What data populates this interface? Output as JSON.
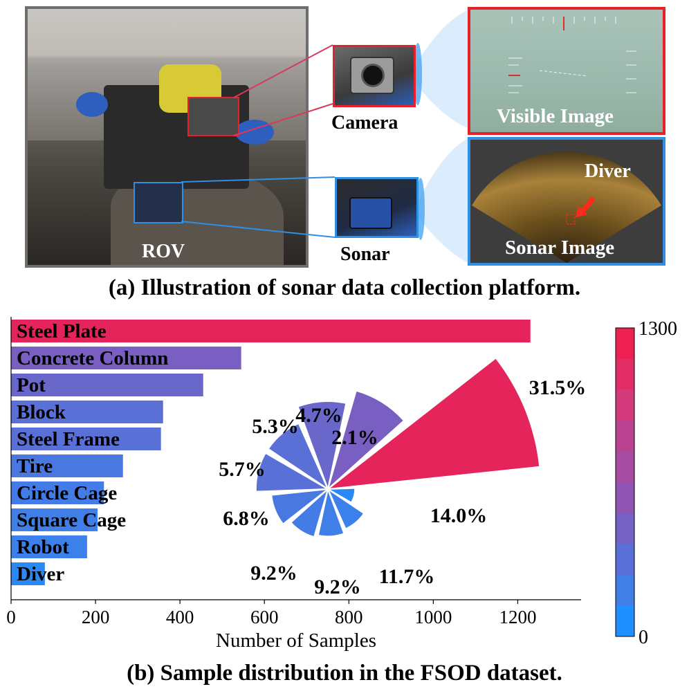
{
  "panel_a": {
    "caption": "(a) Illustration of  sonar data collection platform.",
    "rov_label": "ROV",
    "camera_label": "Camera",
    "sonar_label": "Sonar",
    "visible_image_label": "Visible Image",
    "sonar_image_label": "Sonar Image",
    "diver_label": "Diver",
    "colors": {
      "camera_box": "#e8202a",
      "sonar_box": "#2f8fe0",
      "rov_frame": "#6e6e6e"
    }
  },
  "panel_b": {
    "caption": "(b) Sample distribution in the FSOD dataset."
  },
  "chart_data": [
    {
      "type": "bar",
      "orientation": "horizontal",
      "categories": [
        "Steel Plate",
        "Concrete Column",
        "Pot",
        "Block",
        "Steel Frame",
        "Tire",
        "Circle Cage",
        "Square Cage",
        "Robot",
        "Diver"
      ],
      "values": [
        1230,
        545,
        455,
        360,
        355,
        265,
        220,
        205,
        180,
        80
      ],
      "xlabel": "Number of Samples",
      "xticks": [
        "0",
        "200",
        "400",
        "600",
        "800",
        "1000",
        "1200"
      ],
      "xlim": [
        0,
        1350
      ]
    },
    {
      "type": "polar-bar",
      "slices": [
        {
          "category": "Steel Plate",
          "label": "31.5%",
          "value": 31.5
        },
        {
          "category": "Concrete Column",
          "label": "14.0%",
          "value": 14.0
        },
        {
          "category": "Pot",
          "label": "11.7%",
          "value": 11.7
        },
        {
          "category": "Block",
          "label": "9.2%",
          "value": 9.2
        },
        {
          "category": "Steel Frame",
          "label": "9.2%",
          "value": 9.2
        },
        {
          "category": "Tire",
          "label": "6.8%",
          "value": 6.8
        },
        {
          "category": "Circle Cage",
          "label": "5.7%",
          "value": 5.7
        },
        {
          "category": "Square Cage",
          "label": "5.3%",
          "value": 5.3
        },
        {
          "category": "Robot",
          "label": "4.7%",
          "value": 4.7
        },
        {
          "category": "Diver",
          "label": "2.1%",
          "value": 2.1
        }
      ]
    },
    {
      "type": "colorbar",
      "min_label": "0",
      "max_label": "1300",
      "range": [
        0,
        1300
      ],
      "colors": [
        "#1e90ff",
        "#3f7fe6",
        "#5a70d6",
        "#7562c4",
        "#8e55b2",
        "#a64ca2",
        "#bb4290",
        "#d23a7c",
        "#e22c66",
        "#ee1f52"
      ]
    }
  ]
}
